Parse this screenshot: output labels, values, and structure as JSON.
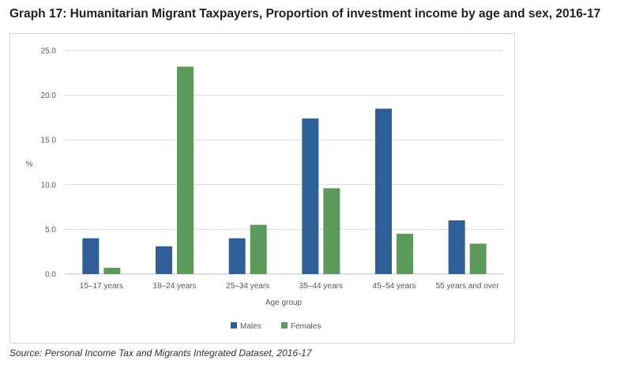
{
  "page": {
    "title": "Graph 17: Humanitarian Migrant Taxpayers, Proportion of investment income by age and sex, 2016-17",
    "source": "Source: Personal Income Tax and Migrants Integrated Dataset, 2016-17"
  },
  "chart_data": {
    "type": "bar",
    "title": "Graph 17: Humanitarian Migrant Taxpayers, Proportion of investment income by age and sex, 2016-17",
    "xlabel": "Age group",
    "ylabel": "%",
    "categories": [
      "15–17 years",
      "18–24 years",
      "25–34 years",
      "35–44 years",
      "45–54 years",
      "55 years and over"
    ],
    "series": [
      {
        "name": "Males",
        "color": "#2e5f98",
        "values": [
          4.0,
          3.1,
          4.0,
          17.4,
          18.5,
          6.0
        ]
      },
      {
        "name": "Females",
        "color": "#5c9a5c",
        "values": [
          0.7,
          23.2,
          5.5,
          9.6,
          4.5,
          3.4
        ]
      }
    ],
    "ylim": [
      0,
      25
    ],
    "yticks": [
      "0.0",
      "5.0",
      "10.0",
      "15.0",
      "20.0",
      "25.0"
    ],
    "grid": true,
    "legend": "bottom"
  }
}
